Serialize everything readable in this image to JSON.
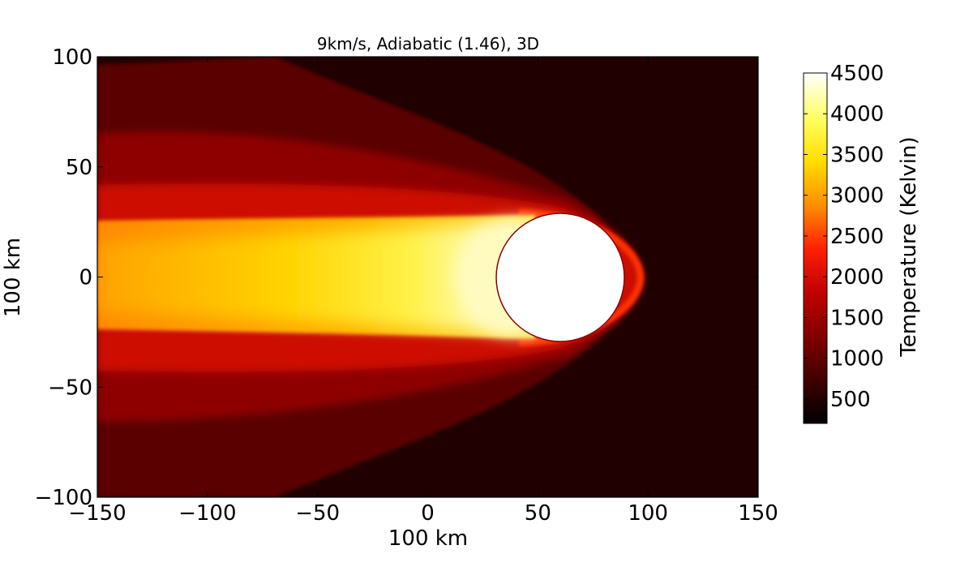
{
  "chart_data": {
    "type": "heatmap",
    "title": "9km/s, Adiabatic (1.46), 3D",
    "xlabel": "100 km",
    "ylabel": "100 km",
    "xlim": [
      -150,
      150
    ],
    "ylim": [
      -100,
      100
    ],
    "xticks": [
      -150,
      -100,
      -50,
      0,
      50,
      100,
      150
    ],
    "yticks": [
      -100,
      -50,
      0,
      50,
      100
    ],
    "xtick_labels": [
      "−150",
      "−100",
      "−50",
      "0",
      "50",
      "100",
      "150"
    ],
    "ytick_labels": [
      "−100",
      "−50",
      "0",
      "50",
      "100"
    ],
    "grid": false,
    "colorbar": {
      "label": "Temperature (Kelvin)",
      "range": [
        200,
        4500
      ],
      "ticks": [
        500,
        1000,
        1500,
        2000,
        2500,
        3000,
        3500,
        4000,
        4500
      ],
      "colormap": "hot",
      "colors": [
        "#000000",
        "#8b0000",
        "#ff0000",
        "#ff8c00",
        "#ffff00",
        "#ffffff"
      ]
    },
    "features": {
      "sphere_center": [
        60,
        0
      ],
      "sphere_radius": 29,
      "sphere_color": "#ffffff",
      "shock_nose_x": 96,
      "background_temperature": 250,
      "core_wake_temperature": 3700,
      "outer_shock_layer_temperature": 1200
    }
  }
}
